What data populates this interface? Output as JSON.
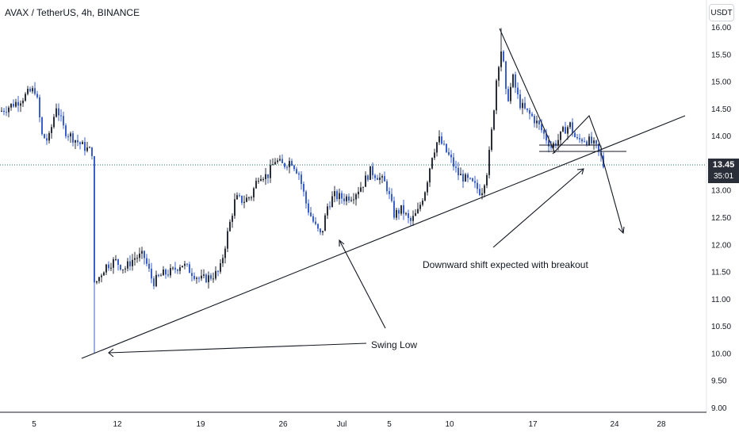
{
  "header": {
    "symbol_title": "AVAX / TetherUS, 4h, BINANCE",
    "currency_button": "USDT"
  },
  "price_badge": {
    "price": "13.45",
    "countdown": "35:01"
  },
  "annotations": {
    "swing_low": "Swing Low",
    "breakout_note": "Downward shift expected with breakout"
  },
  "colors": {
    "up_candle": "#2a2e39",
    "down_candle": "#3a5fcd",
    "line": "#131722",
    "price_line": "#1a6b5a",
    "axis_text": "#131722"
  },
  "chart_data": {
    "type": "candlestick",
    "title": "AVAX / TetherUS, 4h, BINANCE",
    "ylim": [
      8.9,
      16.1
    ],
    "y_ticks": [
      "16.00",
      "15.50",
      "15.00",
      "14.50",
      "14.00",
      "13.50",
      "13.00",
      "12.50",
      "12.00",
      "11.50",
      "11.00",
      "10.50",
      "10.00",
      "9.50",
      "9.00"
    ],
    "x_ticks": [
      "5",
      "12",
      "19",
      "26",
      "Jul",
      "5",
      "10",
      "17",
      "24",
      "28"
    ],
    "current_price": 13.45,
    "series": [
      {
        "name": "price path (approx. close levels)",
        "points": [
          {
            "x": 0,
            "y": 14.45
          },
          {
            "x": 12,
            "y": 14.55
          },
          {
            "x": 24,
            "y": 14.65
          },
          {
            "x": 36,
            "y": 14.8
          },
          {
            "x": 44,
            "y": 14.85
          },
          {
            "x": 52,
            "y": 14.0
          },
          {
            "x": 60,
            "y": 13.9
          },
          {
            "x": 70,
            "y": 14.55
          },
          {
            "x": 80,
            "y": 14.1
          },
          {
            "x": 92,
            "y": 13.95
          },
          {
            "x": 104,
            "y": 13.8
          },
          {
            "x": 115,
            "y": 13.7
          },
          {
            "x": 120,
            "y": 11.3
          },
          {
            "x": 132,
            "y": 11.6
          },
          {
            "x": 144,
            "y": 11.7
          },
          {
            "x": 156,
            "y": 11.55
          },
          {
            "x": 168,
            "y": 11.75
          },
          {
            "x": 180,
            "y": 11.8
          },
          {
            "x": 192,
            "y": 11.3
          },
          {
            "x": 204,
            "y": 11.45
          },
          {
            "x": 216,
            "y": 11.5
          },
          {
            "x": 228,
            "y": 11.65
          },
          {
            "x": 240,
            "y": 11.5
          },
          {
            "x": 252,
            "y": 11.35
          },
          {
            "x": 264,
            "y": 11.4
          },
          {
            "x": 276,
            "y": 11.5
          },
          {
            "x": 286,
            "y": 12.2
          },
          {
            "x": 296,
            "y": 12.85
          },
          {
            "x": 306,
            "y": 12.8
          },
          {
            "x": 316,
            "y": 12.9
          },
          {
            "x": 326,
            "y": 13.3
          },
          {
            "x": 336,
            "y": 13.25
          },
          {
            "x": 346,
            "y": 13.55
          },
          {
            "x": 356,
            "y": 13.45
          },
          {
            "x": 366,
            "y": 13.55
          },
          {
            "x": 376,
            "y": 13.3
          },
          {
            "x": 386,
            "y": 12.7
          },
          {
            "x": 396,
            "y": 12.35
          },
          {
            "x": 404,
            "y": 12.15
          },
          {
            "x": 412,
            "y": 12.7
          },
          {
            "x": 420,
            "y": 12.9
          },
          {
            "x": 432,
            "y": 12.85
          },
          {
            "x": 444,
            "y": 12.9
          },
          {
            "x": 456,
            "y": 13.1
          },
          {
            "x": 466,
            "y": 13.35
          },
          {
            "x": 476,
            "y": 13.25
          },
          {
            "x": 486,
            "y": 13.1
          },
          {
            "x": 496,
            "y": 12.55
          },
          {
            "x": 506,
            "y": 12.65
          },
          {
            "x": 516,
            "y": 12.4
          },
          {
            "x": 526,
            "y": 12.6
          },
          {
            "x": 536,
            "y": 13.05
          },
          {
            "x": 544,
            "y": 13.65
          },
          {
            "x": 552,
            "y": 13.95
          },
          {
            "x": 560,
            "y": 13.75
          },
          {
            "x": 568,
            "y": 13.55
          },
          {
            "x": 576,
            "y": 13.3
          },
          {
            "x": 586,
            "y": 13.2
          },
          {
            "x": 596,
            "y": 13.1
          },
          {
            "x": 606,
            "y": 12.95
          },
          {
            "x": 614,
            "y": 13.4
          },
          {
            "x": 620,
            "y": 14.2
          },
          {
            "x": 626,
            "y": 15.2
          },
          {
            "x": 632,
            "y": 15.65
          },
          {
            "x": 638,
            "y": 14.6
          },
          {
            "x": 646,
            "y": 15.05
          },
          {
            "x": 654,
            "y": 14.6
          },
          {
            "x": 662,
            "y": 14.45
          },
          {
            "x": 670,
            "y": 14.35
          },
          {
            "x": 678,
            "y": 14.2
          },
          {
            "x": 686,
            "y": 14.0
          },
          {
            "x": 694,
            "y": 13.8
          },
          {
            "x": 702,
            "y": 13.9
          },
          {
            "x": 710,
            "y": 14.1
          },
          {
            "x": 718,
            "y": 14.2
          },
          {
            "x": 726,
            "y": 13.9
          },
          {
            "x": 734,
            "y": 13.95
          },
          {
            "x": 742,
            "y": 13.9
          },
          {
            "x": 750,
            "y": 13.8
          },
          {
            "x": 756,
            "y": 13.65
          },
          {
            "x": 760,
            "y": 13.45
          }
        ]
      }
    ],
    "drawings": [
      "ascending trendline",
      "horizontal support",
      "descending trendline from peak",
      "triangle",
      "arrows"
    ]
  }
}
